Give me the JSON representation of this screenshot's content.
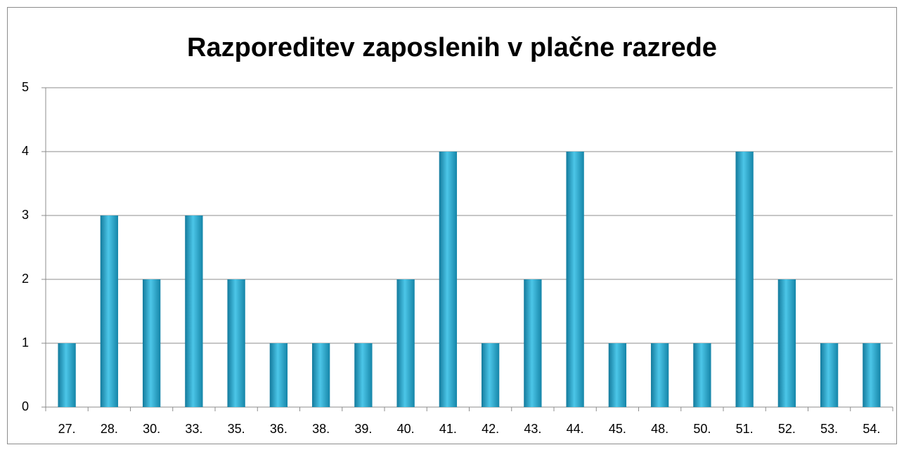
{
  "chart_data": {
    "type": "bar",
    "title": "Razporeditev zaposlenih v plačne razrede",
    "categories": [
      "27.",
      "28.",
      "30.",
      "33.",
      "35.",
      "36.",
      "38.",
      "39.",
      "40.",
      "41.",
      "42.",
      "43.",
      "44.",
      "45.",
      "48.",
      "50.",
      "51.",
      "52.",
      "53.",
      "54."
    ],
    "values": [
      1,
      3,
      2,
      3,
      2,
      1,
      1,
      1,
      2,
      4,
      1,
      2,
      4,
      1,
      1,
      1,
      4,
      2,
      1,
      1
    ],
    "color": "#2aa8cf",
    "ylim": [
      0,
      5
    ],
    "yticks": [
      0,
      1,
      2,
      3,
      4,
      5
    ],
    "grid": true
  }
}
